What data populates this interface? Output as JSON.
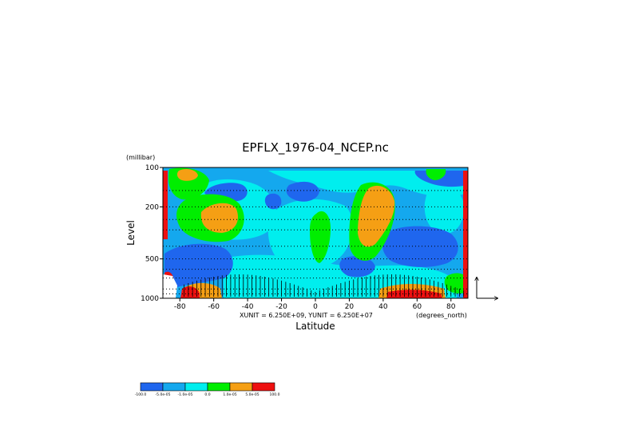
{
  "chart_data": {
    "type": "heatmap",
    "title": "EPFLX_1976-04_NCEP.nc",
    "xlabel": "Latitude",
    "x_units": "(degrees_north)",
    "ylabel": "Level",
    "y_units": "(millibar)",
    "unit_note": "XUNIT = 6.250E+09, YUNIT = 6.250E+07",
    "xlim": [
      -90,
      90
    ],
    "x_ticks": [
      -80,
      -60,
      -40,
      -20,
      0,
      20,
      40,
      60,
      80
    ],
    "y_scale": "log",
    "ylim": [
      1000,
      100
    ],
    "y_ticks": [
      100,
      200,
      500,
      1000
    ],
    "grid": "dotted",
    "colorbar": {
      "position": "bottom-left",
      "colors": [
        "#1f66ee",
        "#14a8ee",
        "#00eeee",
        "#00ee00",
        "#f59f14",
        "#ee1010"
      ],
      "labels": [
        "-100.0",
        "-5.0e-05",
        "-1.0e-05",
        "0.0",
        "1.0e-05",
        "5.0e-05",
        "100.0"
      ]
    },
    "vectors": "EP flux arrows concentrated near 1000-500 mb"
  }
}
